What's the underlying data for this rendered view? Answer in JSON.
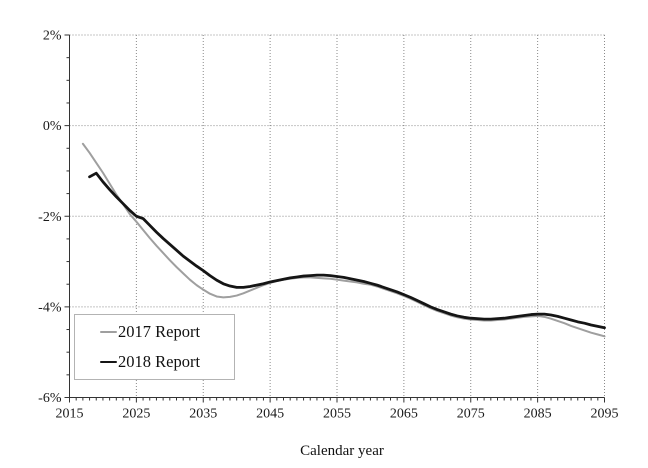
{
  "chart_data": {
    "type": "line",
    "title": "",
    "xlabel": "Calendar year",
    "ylabel": "",
    "xlim": [
      2015,
      2095
    ],
    "ylim": [
      -6,
      2
    ],
    "grid": true,
    "gridline_style": "dotted",
    "legend_position": "lower-left",
    "x_minor_tick_step": 1,
    "y_minor_tick_step": 0.5,
    "x_ticks": [
      {
        "v": 2015,
        "label": "2015"
      },
      {
        "v": 2025,
        "label": "2025"
      },
      {
        "v": 2035,
        "label": "2035"
      },
      {
        "v": 2045,
        "label": "2045"
      },
      {
        "v": 2055,
        "label": "2055"
      },
      {
        "v": 2065,
        "label": "2065"
      },
      {
        "v": 2075,
        "label": "2075"
      },
      {
        "v": 2085,
        "label": "2085"
      },
      {
        "v": 2095,
        "label": "2095"
      }
    ],
    "y_ticks": [
      {
        "v": 2,
        "label": "2%"
      },
      {
        "v": 0,
        "label": "0%"
      },
      {
        "v": -2,
        "label": "-2%"
      },
      {
        "v": -4,
        "label": "-4%"
      },
      {
        "v": -6,
        "label": "-6%"
      }
    ],
    "colors": {
      "grid": "#8a8a8a",
      "axis": "#333333",
      "text": "#1a1a1a",
      "background": "#ffffff",
      "legend_border": "#b3b3b3"
    },
    "series": [
      {
        "name": "2017 Report",
        "color": "#9f9f9f",
        "stroke_width": 2,
        "points": [
          [
            2017,
            -0.4
          ],
          [
            2018,
            -0.6
          ],
          [
            2019,
            -0.82
          ],
          [
            2020,
            -1.04
          ],
          [
            2021,
            -1.28
          ],
          [
            2022,
            -1.52
          ],
          [
            2023,
            -1.73
          ],
          [
            2024,
            -1.95
          ],
          [
            2025,
            -2.12
          ],
          [
            2026,
            -2.3
          ],
          [
            2027,
            -2.48
          ],
          [
            2028,
            -2.65
          ],
          [
            2029,
            -2.81
          ],
          [
            2030,
            -2.97
          ],
          [
            2031,
            -3.12
          ],
          [
            2032,
            -3.26
          ],
          [
            2033,
            -3.4
          ],
          [
            2034,
            -3.52
          ],
          [
            2035,
            -3.62
          ],
          [
            2036,
            -3.71
          ],
          [
            2037,
            -3.77
          ],
          [
            2038,
            -3.79
          ],
          [
            2039,
            -3.78
          ],
          [
            2040,
            -3.75
          ],
          [
            2041,
            -3.7
          ],
          [
            2042,
            -3.64
          ],
          [
            2043,
            -3.58
          ],
          [
            2044,
            -3.52
          ],
          [
            2045,
            -3.47
          ],
          [
            2046,
            -3.43
          ],
          [
            2047,
            -3.4
          ],
          [
            2048,
            -3.38
          ],
          [
            2049,
            -3.36
          ],
          [
            2050,
            -3.35
          ],
          [
            2051,
            -3.35
          ],
          [
            2052,
            -3.36
          ],
          [
            2053,
            -3.37
          ],
          [
            2054,
            -3.38
          ],
          [
            2055,
            -3.4
          ],
          [
            2056,
            -3.42
          ],
          [
            2057,
            -3.44
          ],
          [
            2058,
            -3.46
          ],
          [
            2059,
            -3.49
          ],
          [
            2060,
            -3.51
          ],
          [
            2061,
            -3.55
          ],
          [
            2062,
            -3.6
          ],
          [
            2063,
            -3.65
          ],
          [
            2064,
            -3.7
          ],
          [
            2065,
            -3.76
          ],
          [
            2066,
            -3.82
          ],
          [
            2067,
            -3.89
          ],
          [
            2068,
            -3.96
          ],
          [
            2069,
            -4.03
          ],
          [
            2070,
            -4.09
          ],
          [
            2071,
            -4.14
          ],
          [
            2072,
            -4.19
          ],
          [
            2073,
            -4.23
          ],
          [
            2074,
            -4.26
          ],
          [
            2075,
            -4.28
          ],
          [
            2076,
            -4.29
          ],
          [
            2077,
            -4.3
          ],
          [
            2078,
            -4.3
          ],
          [
            2079,
            -4.29
          ],
          [
            2080,
            -4.28
          ],
          [
            2081,
            -4.26
          ],
          [
            2082,
            -4.24
          ],
          [
            2083,
            -4.22
          ],
          [
            2084,
            -4.21
          ],
          [
            2085,
            -4.2
          ],
          [
            2086,
            -4.22
          ],
          [
            2087,
            -4.26
          ],
          [
            2088,
            -4.31
          ],
          [
            2089,
            -4.36
          ],
          [
            2090,
            -4.42
          ],
          [
            2091,
            -4.47
          ],
          [
            2092,
            -4.52
          ],
          [
            2093,
            -4.57
          ],
          [
            2094,
            -4.61
          ],
          [
            2095,
            -4.65
          ]
        ]
      },
      {
        "name": "2018 Report",
        "color": "#151515",
        "stroke_width": 2.8,
        "points": [
          [
            2018,
            -1.13
          ],
          [
            2019,
            -1.05
          ],
          [
            2020,
            -1.24
          ],
          [
            2021,
            -1.41
          ],
          [
            2022,
            -1.57
          ],
          [
            2023,
            -1.72
          ],
          [
            2024,
            -1.87
          ],
          [
            2025,
            -2.0
          ],
          [
            2026,
            -2.05
          ],
          [
            2027,
            -2.2
          ],
          [
            2028,
            -2.35
          ],
          [
            2029,
            -2.49
          ],
          [
            2030,
            -2.62
          ],
          [
            2031,
            -2.75
          ],
          [
            2032,
            -2.88
          ],
          [
            2033,
            -2.99
          ],
          [
            2034,
            -3.1
          ],
          [
            2035,
            -3.2
          ],
          [
            2036,
            -3.31
          ],
          [
            2037,
            -3.41
          ],
          [
            2038,
            -3.49
          ],
          [
            2039,
            -3.54
          ],
          [
            2040,
            -3.57
          ],
          [
            2041,
            -3.57
          ],
          [
            2042,
            -3.55
          ],
          [
            2043,
            -3.52
          ],
          [
            2044,
            -3.49
          ],
          [
            2045,
            -3.45
          ],
          [
            2046,
            -3.42
          ],
          [
            2047,
            -3.39
          ],
          [
            2048,
            -3.36
          ],
          [
            2049,
            -3.34
          ],
          [
            2050,
            -3.32
          ],
          [
            2051,
            -3.31
          ],
          [
            2052,
            -3.3
          ],
          [
            2053,
            -3.3
          ],
          [
            2054,
            -3.31
          ],
          [
            2055,
            -3.33
          ],
          [
            2056,
            -3.35
          ],
          [
            2057,
            -3.38
          ],
          [
            2058,
            -3.41
          ],
          [
            2059,
            -3.44
          ],
          [
            2060,
            -3.48
          ],
          [
            2061,
            -3.52
          ],
          [
            2062,
            -3.57
          ],
          [
            2063,
            -3.62
          ],
          [
            2064,
            -3.67
          ],
          [
            2065,
            -3.73
          ],
          [
            2066,
            -3.79
          ],
          [
            2067,
            -3.86
          ],
          [
            2068,
            -3.93
          ],
          [
            2069,
            -4.0
          ],
          [
            2070,
            -4.06
          ],
          [
            2071,
            -4.11
          ],
          [
            2072,
            -4.16
          ],
          [
            2073,
            -4.2
          ],
          [
            2074,
            -4.23
          ],
          [
            2075,
            -4.25
          ],
          [
            2076,
            -4.26
          ],
          [
            2077,
            -4.27
          ],
          [
            2078,
            -4.27
          ],
          [
            2079,
            -4.26
          ],
          [
            2080,
            -4.25
          ],
          [
            2081,
            -4.23
          ],
          [
            2082,
            -4.21
          ],
          [
            2083,
            -4.19
          ],
          [
            2084,
            -4.17
          ],
          [
            2085,
            -4.16
          ],
          [
            2086,
            -4.16
          ],
          [
            2087,
            -4.18
          ],
          [
            2088,
            -4.21
          ],
          [
            2089,
            -4.25
          ],
          [
            2090,
            -4.29
          ],
          [
            2091,
            -4.33
          ],
          [
            2092,
            -4.36
          ],
          [
            2093,
            -4.4
          ],
          [
            2094,
            -4.43
          ],
          [
            2095,
            -4.46
          ]
        ]
      }
    ]
  }
}
